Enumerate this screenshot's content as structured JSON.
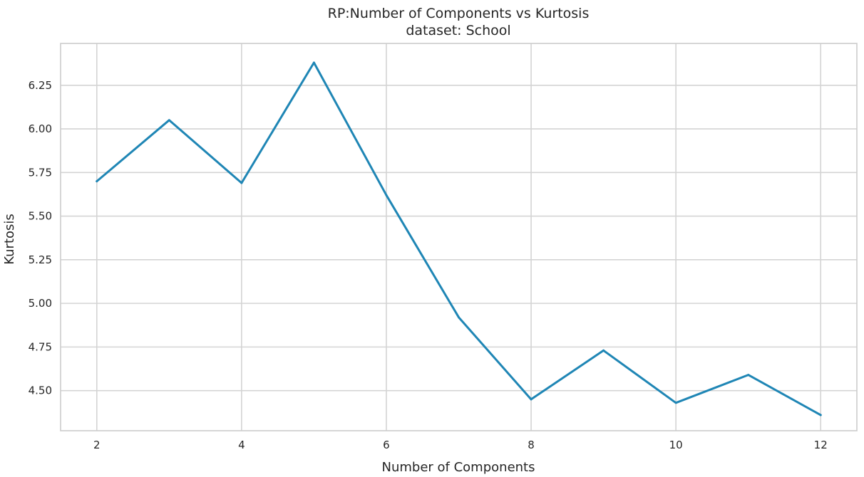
{
  "chart_data": {
    "type": "line",
    "title": "RP:Number of Components vs Kurtosis",
    "subtitle": "dataset: School",
    "xlabel": "Number of Components",
    "ylabel": "Kurtosis",
    "xlim": [
      1.5,
      12.5
    ],
    "ylim": [
      4.27,
      6.49
    ],
    "xticks": [
      2,
      4,
      6,
      8,
      10,
      12
    ],
    "yticks": [
      4.5,
      4.75,
      5.0,
      5.25,
      5.5,
      5.75,
      6.0,
      6.25
    ],
    "ytick_labels": [
      "4.50",
      "4.75",
      "5.00",
      "5.25",
      "5.50",
      "5.75",
      "6.00",
      "6.25"
    ],
    "grid": true,
    "series": [
      {
        "color": "#1f86b5",
        "x": [
          2,
          3,
          4,
          5,
          6,
          7,
          8,
          9,
          10,
          11,
          12
        ],
        "y": [
          5.7,
          6.05,
          5.69,
          6.38,
          5.62,
          4.92,
          4.45,
          4.73,
          4.43,
          4.59,
          4.36
        ]
      }
    ]
  }
}
